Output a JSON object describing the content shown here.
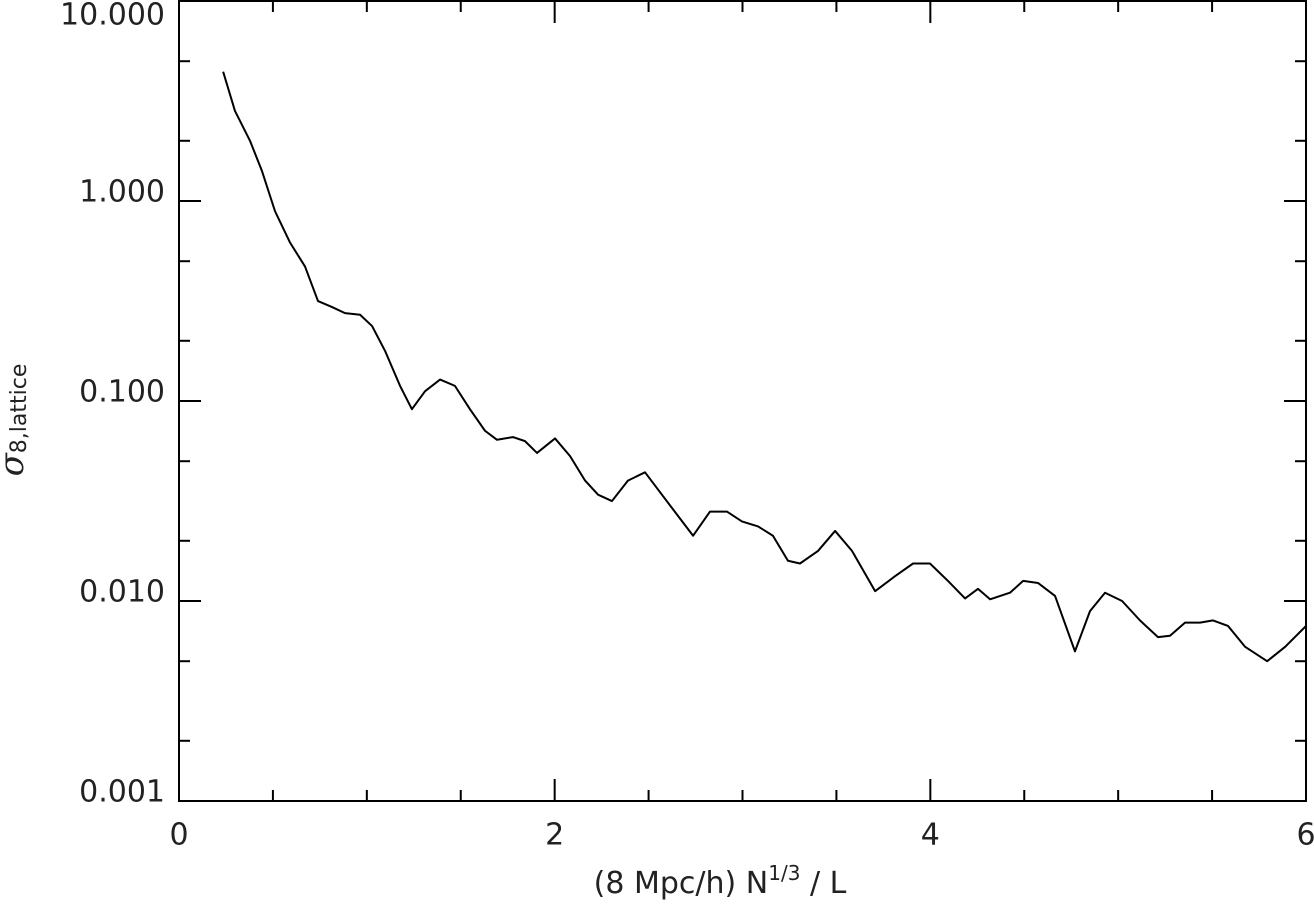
{
  "chart_data": {
    "type": "line",
    "x_label": [
      "(8 Mpc/h) N",
      "1/3",
      " / L"
    ],
    "y_label": [
      "σ",
      "8,lattice"
    ],
    "log_y": true,
    "xlim": [
      0,
      6
    ],
    "xticks": [
      0,
      2,
      4,
      6
    ],
    "xminor_ticks": [
      0.5,
      1,
      1.5,
      2.5,
      3,
      3.5,
      4.5,
      5,
      5.5
    ],
    "ylim": [
      0.001,
      10
    ],
    "yticks": [
      {
        "value": 0.001,
        "label": "0.001"
      },
      {
        "value": 0.01,
        "label": "0.010"
      },
      {
        "value": 0.1,
        "label": "0.100"
      },
      {
        "value": 1,
        "label": "1.000"
      },
      {
        "value": 10,
        "label": "10.000"
      }
    ],
    "yminor_ticks": [
      0.002,
      0.005,
      0.02,
      0.05,
      0.2,
      0.5,
      2,
      5
    ],
    "series": [
      {
        "color": "#000000",
        "x": [
          0.235,
          0.298,
          0.378,
          0.442,
          0.511,
          0.591,
          0.671,
          0.74,
          0.815,
          0.884,
          0.964,
          1.028,
          1.097,
          1.177,
          1.24,
          1.31,
          1.39,
          1.469,
          1.549,
          1.629,
          1.693,
          1.778,
          1.842,
          1.906,
          2.002,
          2.082,
          2.162,
          2.231,
          2.305,
          2.39,
          2.481,
          2.561,
          2.657,
          2.737,
          2.827,
          2.917,
          2.997,
          3.083,
          3.162,
          3.242,
          3.306,
          3.402,
          3.493,
          3.583,
          3.706,
          3.812,
          3.908,
          3.998,
          4.094,
          4.185,
          4.254,
          4.318,
          4.424,
          4.494,
          4.574,
          4.664,
          4.77,
          4.85,
          4.93,
          5.021,
          5.116,
          5.212,
          5.276,
          5.356,
          5.436,
          5.505,
          5.585,
          5.676,
          5.793,
          5.889,
          6.0
        ],
        "values": [
          4.43,
          2.82,
          2.0,
          1.41,
          0.89,
          0.62,
          0.47,
          0.316,
          0.295,
          0.275,
          0.27,
          0.237,
          0.178,
          0.119,
          0.091,
          0.112,
          0.128,
          0.119,
          0.091,
          0.071,
          0.064,
          0.066,
          0.063,
          0.055,
          0.065,
          0.053,
          0.04,
          0.034,
          0.0316,
          0.04,
          0.044,
          0.035,
          0.0266,
          0.0212,
          0.028,
          0.028,
          0.025,
          0.0236,
          0.0212,
          0.0159,
          0.0154,
          0.0178,
          0.0224,
          0.0178,
          0.0112,
          0.0133,
          0.0154,
          0.0154,
          0.0126,
          0.0103,
          0.0115,
          0.0102,
          0.011,
          0.0126,
          0.0123,
          0.0106,
          0.0056,
          0.0089,
          0.011,
          0.01,
          0.008,
          0.0066,
          0.0067,
          0.0078,
          0.0078,
          0.008,
          0.0075,
          0.0059,
          0.005,
          0.0059,
          0.0075
        ]
      }
    ]
  }
}
